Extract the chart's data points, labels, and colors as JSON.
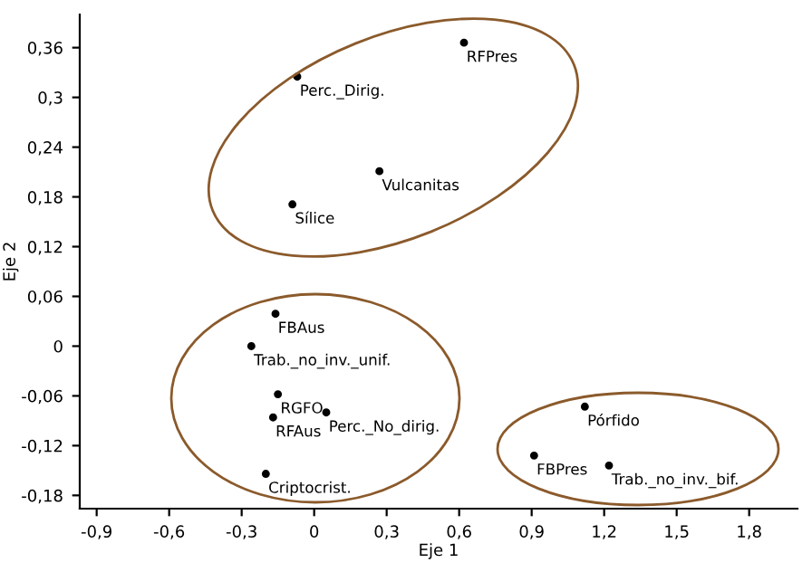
{
  "chart_data": {
    "type": "scatter",
    "xlabel": "Eje 1",
    "ylabel": "Eje 2",
    "marker": "circle",
    "grid": false,
    "x": [
      0.62,
      -0.07,
      0.27,
      -0.09,
      -0.16,
      -0.26,
      -0.15,
      -0.17,
      0.05,
      -0.2,
      1.12,
      0.91,
      1.22
    ],
    "values": [
      0.366,
      0.325,
      0.211,
      0.171,
      0.039,
      0.0,
      -0.058,
      -0.086,
      -0.08,
      -0.154,
      -0.073,
      -0.132,
      -0.144
    ],
    "color": "#000000",
    "annotations": [
      {
        "text": "RFPres",
        "x": 0.62,
        "y": 0.366
      },
      {
        "text": "Perc._Dirig.",
        "x": -0.07,
        "y": 0.325
      },
      {
        "text": "Vulcanitas",
        "x": 0.27,
        "y": 0.211
      },
      {
        "text": "Sílice",
        "x": -0.09,
        "y": 0.171
      },
      {
        "text": "FBAus",
        "x": -0.16,
        "y": 0.039
      },
      {
        "text": "Trab._no_inv._unif.",
        "x": -0.26,
        "y": 0.0
      },
      {
        "text": "RGFO",
        "x": -0.15,
        "y": -0.058
      },
      {
        "text": "RFAus",
        "x": -0.17,
        "y": -0.086
      },
      {
        "text": "Perc._No_dirig.",
        "x": 0.05,
        "y": -0.08
      },
      {
        "text": "Criptocrist.",
        "x": -0.2,
        "y": -0.154
      },
      {
        "text": "Pórfido",
        "x": 1.12,
        "y": -0.073
      },
      {
        "text": "FBPres",
        "x": 0.91,
        "y": -0.132
      },
      {
        "text": "Trab._no_inv._bif.",
        "x": 1.22,
        "y": -0.144
      }
    ],
    "xlim": [
      -0.97,
      2.0
    ],
    "ylim": [
      -0.196,
      0.4
    ],
    "xticks": [
      {
        "value": -0.9,
        "label": "-0,9"
      },
      {
        "value": -0.6,
        "label": "-0,6"
      },
      {
        "value": -0.3,
        "label": "-0,3"
      },
      0,
      {
        "value": 0.3,
        "label": "0,3"
      },
      {
        "value": 0.6,
        "label": "0,6"
      },
      {
        "value": 0.9,
        "label": "0,9"
      },
      {
        "value": 1.2,
        "label": "1,2"
      },
      {
        "value": 1.5,
        "label": "1,5"
      },
      {
        "value": 1.8,
        "label": "1,8"
      }
    ],
    "yticks": [
      {
        "value": -0.18,
        "label": "-0,18"
      },
      {
        "value": -0.12,
        "label": "-0,12"
      },
      {
        "value": -0.06,
        "label": "-0,06"
      },
      0,
      {
        "value": 0.06,
        "label": "0,06"
      },
      {
        "value": 0.12,
        "label": "0,12"
      },
      {
        "value": 0.18,
        "label": "0,18"
      },
      {
        "value": 0.24,
        "label": "0,24"
      },
      {
        "value": 0.3,
        "label": "0,3"
      },
      {
        "value": 0.36,
        "label": "0,36"
      }
    ]
  }
}
